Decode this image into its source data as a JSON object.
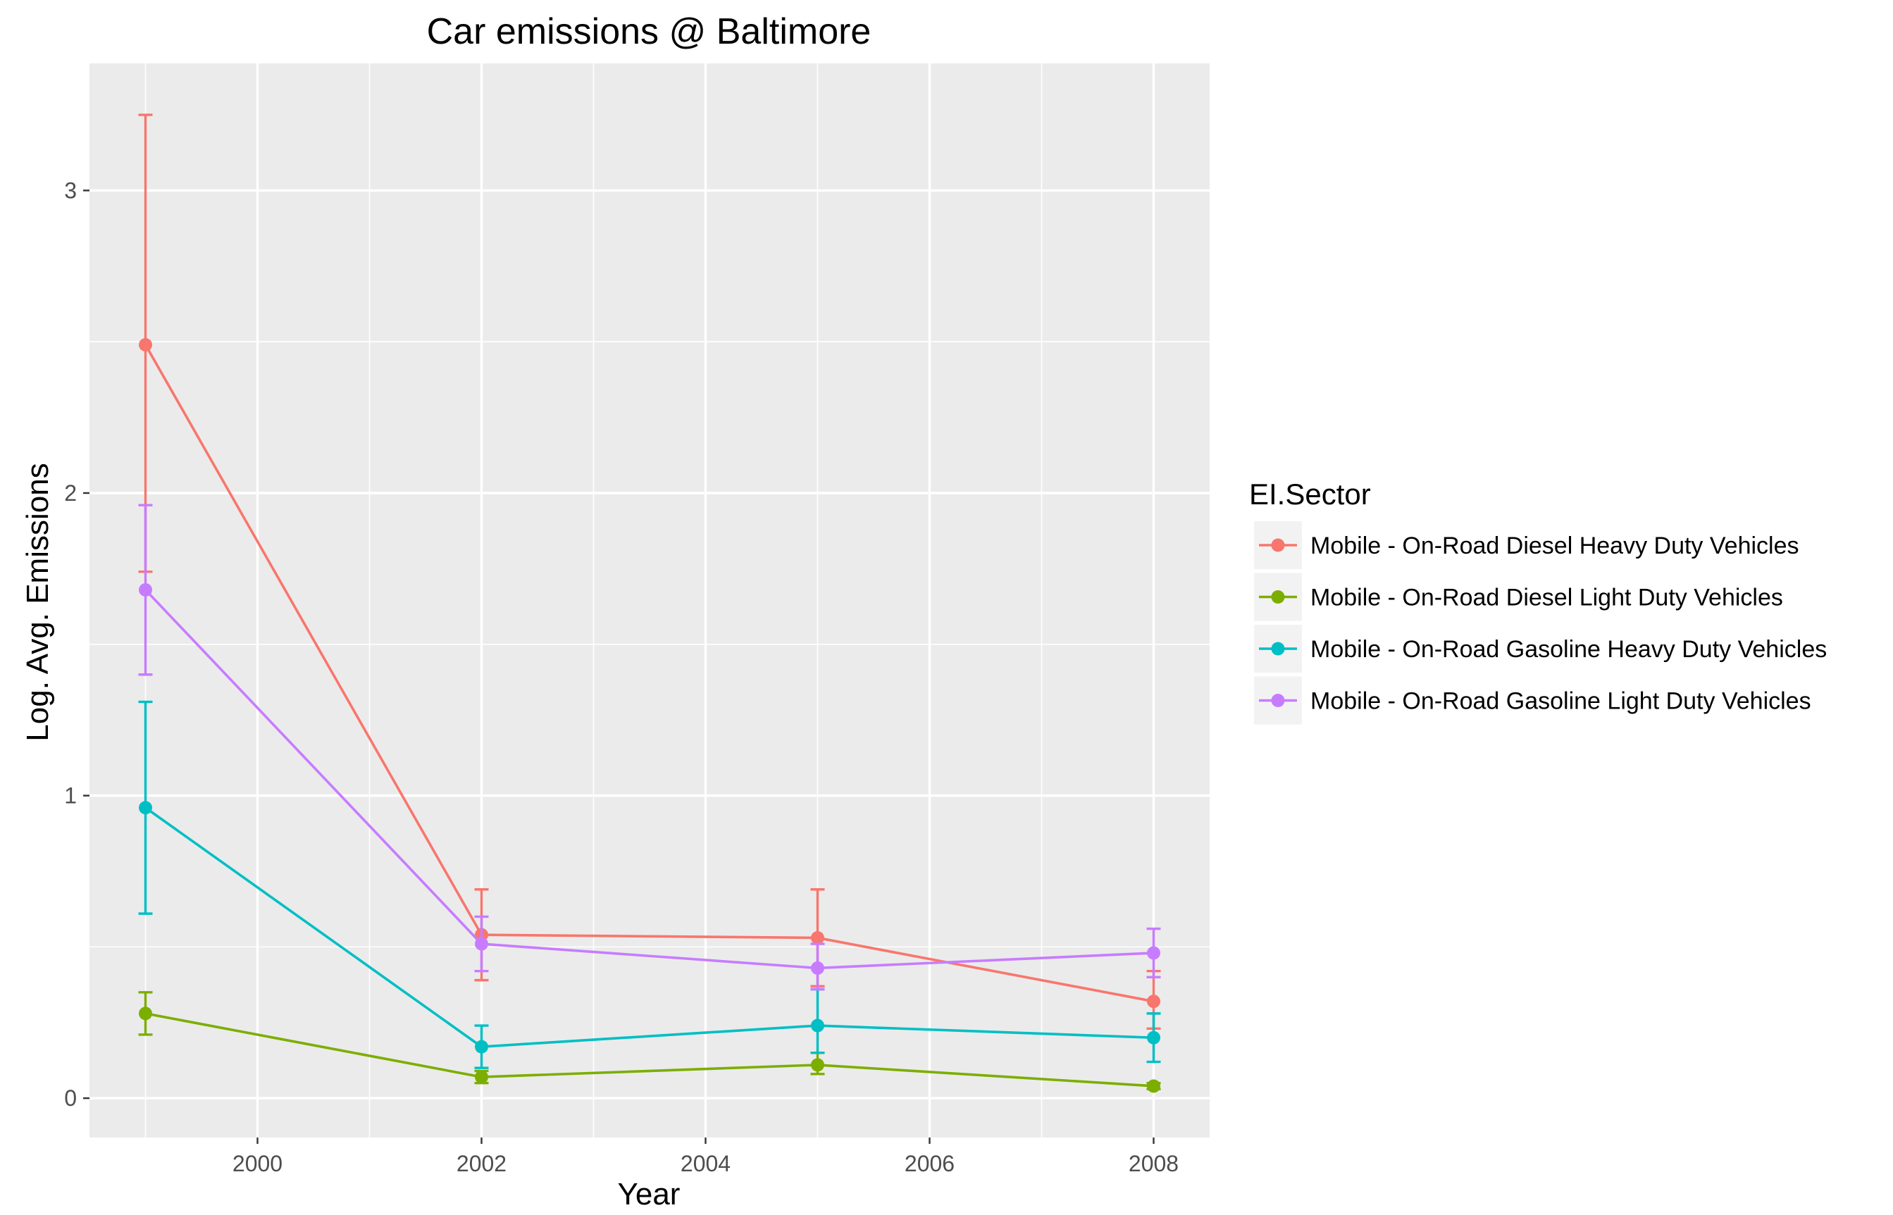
{
  "chart_data": {
    "type": "line",
    "title": "Car emissions @ Baltimore",
    "xlabel": "Year",
    "ylabel": "Log. Avg. Emissions",
    "xlim": [
      1998.5,
      2008.5
    ],
    "ylim": [
      -0.13,
      3.42
    ],
    "x_ticks": [
      2000,
      2002,
      2004,
      2006,
      2008
    ],
    "x_tick_labels": [
      "2000",
      "2002",
      "2004",
      "2006",
      "2008"
    ],
    "y_ticks": [
      0,
      1,
      2,
      3
    ],
    "y_tick_labels": [
      "0",
      "1",
      "2",
      "3"
    ],
    "x": [
      1999,
      2002,
      2005,
      2008
    ],
    "grid": true,
    "legend": {
      "title": "EI.Sector",
      "position": "right"
    },
    "series": [
      {
        "name": "Mobile - On-Road Diesel Heavy Duty Vehicles",
        "color": "#F8766D",
        "values": [
          2.49,
          0.54,
          0.53,
          0.32
        ],
        "lower": [
          1.74,
          0.39,
          0.37,
          0.23
        ],
        "upper": [
          3.25,
          0.69,
          0.69,
          0.42
        ]
      },
      {
        "name": "Mobile - On-Road Diesel Light Duty Vehicles",
        "color": "#7CAE00",
        "values": [
          0.28,
          0.07,
          0.11,
          0.04
        ],
        "lower": [
          0.21,
          0.05,
          0.08,
          0.03
        ],
        "upper": [
          0.35,
          0.09,
          0.15,
          0.05
        ]
      },
      {
        "name": "Mobile - On-Road Gasoline Heavy Duty Vehicles",
        "color": "#00BFC4",
        "values": [
          0.96,
          0.17,
          0.24,
          0.2
        ],
        "lower": [
          0.61,
          0.1,
          0.15,
          0.12
        ],
        "upper": [
          1.31,
          0.24,
          0.36,
          0.28
        ]
      },
      {
        "name": "Mobile - On-Road Gasoline Light Duty Vehicles",
        "color": "#C77CFF",
        "values": [
          1.68,
          0.51,
          0.43,
          0.48
        ],
        "lower": [
          1.4,
          0.42,
          0.36,
          0.4
        ],
        "upper": [
          1.96,
          0.6,
          0.51,
          0.56
        ]
      }
    ]
  }
}
